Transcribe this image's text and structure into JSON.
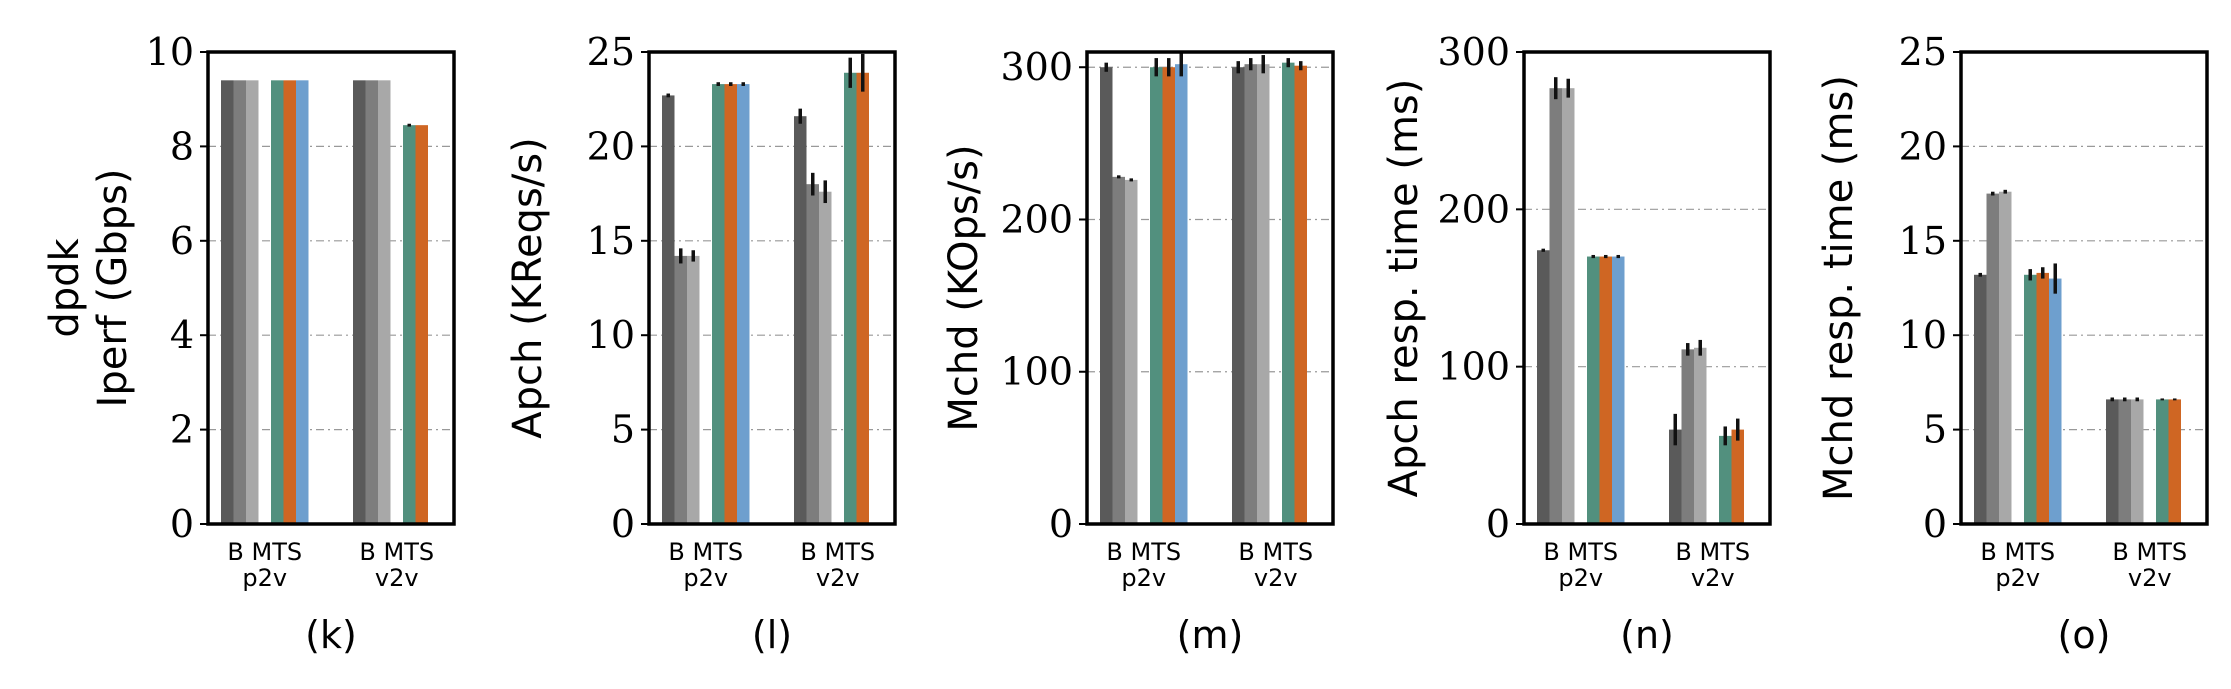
{
  "colors": [
    "#5a5a5a",
    "#7d7d7d",
    "#a8a8a8",
    "#c8c8c8",
    "#52907e",
    "#cf6623",
    "#6e9fce"
  ],
  "chart_data": [
    {
      "type": "bar",
      "sub_label": "(k)",
      "ylabel_lines": [
        "dpdk",
        "Iperf (Gbps)"
      ],
      "ylim": [
        0,
        10
      ],
      "yticks": [
        0,
        2,
        4,
        6,
        8,
        10
      ],
      "groups": [
        {
          "name": "p2v",
          "bar_label": "B  MTS",
          "values": [
            9.4,
            9.4,
            9.4,
            null,
            9.4,
            9.4,
            9.4
          ],
          "errors": [
            0,
            0,
            0,
            0,
            0,
            0,
            0
          ]
        },
        {
          "name": "v2v",
          "bar_label": "B  MTS",
          "values": [
            9.4,
            9.4,
            9.4,
            null,
            8.45,
            8.45,
            null
          ],
          "errors": [
            0,
            0,
            0,
            0,
            0.03,
            0,
            0
          ]
        }
      ]
    },
    {
      "type": "bar",
      "sub_label": "(l)",
      "ylabel_lines": [
        "Apch (KReqs/s)"
      ],
      "ylim": [
        0,
        25
      ],
      "yticks": [
        0,
        5,
        10,
        15,
        20,
        25
      ],
      "groups": [
        {
          "name": "p2v",
          "bar_label": "B  MTS",
          "values": [
            22.7,
            14.2,
            14.2,
            null,
            23.3,
            23.3,
            23.3
          ],
          "errors": [
            0.1,
            0.4,
            0.3,
            0,
            0.1,
            0.1,
            0.1
          ]
        },
        {
          "name": "v2v",
          "bar_label": "B  MTS",
          "values": [
            21.6,
            18.0,
            17.6,
            null,
            23.9,
            23.9,
            null
          ],
          "errors": [
            0.4,
            0.6,
            0.6,
            0,
            0.8,
            1.0,
            0
          ]
        }
      ]
    },
    {
      "type": "bar",
      "sub_label": "(m)",
      "ylabel_lines": [
        "Mchd (KOps/s)"
      ],
      "ylim": [
        0,
        310
      ],
      "yticks": [
        0,
        100,
        200,
        300
      ],
      "groups": [
        {
          "name": "p2v",
          "bar_label": "B  MTS",
          "values": [
            300,
            228,
            226,
            null,
            300,
            300,
            302
          ],
          "errors": [
            3,
            1,
            1,
            0,
            6,
            6,
            8
          ]
        },
        {
          "name": "v2v",
          "bar_label": "B  MTS",
          "values": [
            300,
            302,
            302,
            null,
            303,
            301,
            null
          ],
          "errors": [
            4,
            4,
            6,
            0,
            3,
            3,
            0
          ]
        }
      ]
    },
    {
      "type": "bar",
      "sub_label": "(n)",
      "ylabel_lines": [
        "Apch resp. time (ms)"
      ],
      "ylim": [
        0,
        300
      ],
      "yticks": [
        0,
        100,
        200,
        300
      ],
      "groups": [
        {
          "name": "p2v",
          "bar_label": "B  MTS",
          "values": [
            174,
            277,
            277,
            null,
            170,
            170,
            170
          ],
          "errors": [
            1,
            7,
            6,
            0,
            1,
            1,
            1
          ]
        },
        {
          "name": "v2v",
          "bar_label": "B  MTS",
          "values": [
            60,
            111,
            112,
            null,
            56,
            60,
            null
          ],
          "errors": [
            10,
            4,
            5,
            0,
            6,
            7,
            0
          ]
        }
      ]
    },
    {
      "type": "bar",
      "sub_label": "(o)",
      "ylabel_lines": [
        "Mchd resp. time (ms)"
      ],
      "ylim": [
        0,
        25
      ],
      "yticks": [
        0,
        5,
        10,
        15,
        20,
        25
      ],
      "groups": [
        {
          "name": "p2v",
          "bar_label": "B  MTS",
          "values": [
            13.2,
            17.5,
            17.6,
            null,
            13.2,
            13.3,
            13.0
          ],
          "errors": [
            0.1,
            0.1,
            0.1,
            0,
            0.3,
            0.3,
            0.8
          ]
        },
        {
          "name": "v2v",
          "bar_label": "B  MTS",
          "values": [
            6.6,
            6.6,
            6.6,
            null,
            6.6,
            6.6,
            null
          ],
          "errors": [
            0.1,
            0.1,
            0.1,
            0,
            0.05,
            0.05,
            0
          ]
        }
      ]
    }
  ]
}
